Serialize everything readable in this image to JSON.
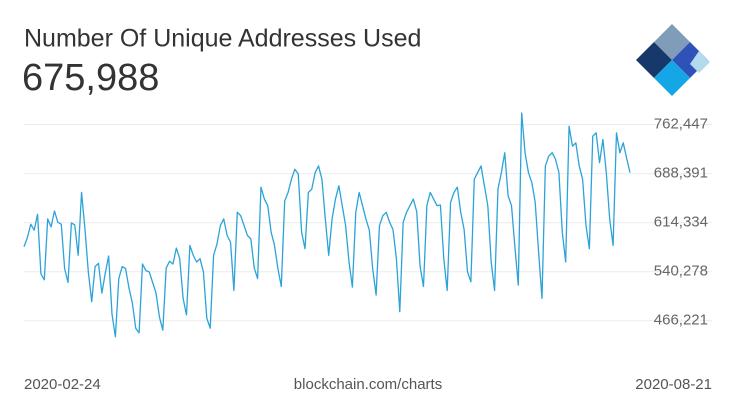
{
  "chart_data": {
    "type": "line",
    "title": "Number Of Unique Addresses Used",
    "headline": "675,988",
    "source": "blockchain.com/charts",
    "categories": [
      "2020-02-24",
      null,
      null,
      null,
      null,
      null,
      null,
      null,
      null,
      null,
      null,
      null,
      null,
      null,
      null,
      null,
      null,
      null,
      null,
      null,
      null,
      null,
      null,
      null,
      null,
      null,
      null,
      null,
      null,
      null,
      null,
      null,
      null,
      null,
      null,
      null,
      null,
      null,
      null,
      null,
      null,
      null,
      null,
      null,
      null,
      null,
      null,
      null,
      null,
      null,
      null,
      null,
      null,
      null,
      null,
      null,
      null,
      null,
      null,
      null,
      null,
      null,
      null,
      null,
      null,
      null,
      null,
      null,
      null,
      null,
      null,
      null,
      null,
      null,
      null,
      null,
      null,
      null,
      null,
      null,
      null,
      null,
      null,
      null,
      null,
      null,
      null,
      null,
      null,
      null,
      null,
      null,
      null,
      null,
      null,
      null,
      null,
      null,
      null,
      null,
      null,
      null,
      null,
      null,
      null,
      null,
      null,
      null,
      null,
      null,
      null,
      null,
      null,
      null,
      null,
      null,
      null,
      null,
      null,
      null,
      null,
      null,
      null,
      null,
      null,
      null,
      null,
      null,
      null,
      null,
      null,
      null,
      null,
      null,
      null,
      null,
      null,
      null,
      null,
      null,
      null,
      null,
      null,
      null,
      null,
      null,
      null,
      null,
      null,
      null,
      null,
      null,
      null,
      null,
      null,
      null,
      null,
      null,
      null,
      null,
      null,
      null,
      null,
      null,
      null,
      null,
      null,
      null,
      null,
      null,
      null,
      null,
      null,
      null,
      null,
      null,
      null,
      null,
      null,
      "2020-08-21"
    ],
    "values": [
      578000,
      592000,
      612000,
      603000,
      627000,
      537000,
      528000,
      620000,
      608000,
      632000,
      615000,
      612000,
      545000,
      524000,
      614000,
      611000,
      565000,
      660000,
      605000,
      540000,
      495000,
      548000,
      553000,
      508000,
      538000,
      564000,
      476000,
      442000,
      530000,
      548000,
      545000,
      516000,
      493000,
      455000,
      448000,
      552000,
      542000,
      540000,
      524000,
      508000,
      472000,
      452000,
      546000,
      556000,
      552000,
      576000,
      560000,
      500000,
      475000,
      580000,
      565000,
      555000,
      560000,
      540000,
      470000,
      455000,
      565000,
      582000,
      610000,
      620000,
      595000,
      585000,
      512000,
      630000,
      625000,
      610000,
      595000,
      590000,
      546000,
      530000,
      668000,
      650000,
      640000,
      600000,
      580000,
      545000,
      518000,
      647000,
      660000,
      680000,
      695000,
      688000,
      600000,
      575000,
      660000,
      665000,
      690000,
      700000,
      680000,
      620000,
      565000,
      620000,
      650000,
      670000,
      640000,
      610000,
      555000,
      517000,
      630000,
      660000,
      640000,
      620000,
      603000,
      545000,
      505000,
      610000,
      625000,
      630000,
      615000,
      604000,
      560000,
      480000,
      615000,
      630000,
      640000,
      650000,
      631000,
      548000,
      518000,
      640000,
      660000,
      650000,
      640000,
      641000,
      560000,
      512000,
      645000,
      660000,
      668000,
      630000,
      604000,
      540000,
      525000,
      680000,
      690000,
      700000,
      670000,
      640000,
      555000,
      512000,
      665000,
      690000,
      720000,
      655000,
      640000,
      578000,
      520000,
      780000,
      720000,
      690000,
      675000,
      645000,
      570000,
      500000,
      700000,
      715000,
      720000,
      710000,
      690000,
      600000,
      555000,
      760000,
      730000,
      735000,
      700000,
      680000,
      610000,
      575000,
      745000,
      750000,
      705000,
      740000,
      690000,
      620000,
      580000,
      750000,
      720000,
      735000,
      712000,
      690000
    ],
    "color": "#2ba3d9",
    "ylim": [
      410000,
      780000
    ],
    "yticks": [
      {
        "value": 466221,
        "label": "466,221"
      },
      {
        "value": 540278,
        "label": "540,278"
      },
      {
        "value": 614334,
        "label": "614,334"
      },
      {
        "value": 688391,
        "label": "688,391"
      },
      {
        "value": 762447,
        "label": "762,447"
      }
    ],
    "grid": true
  }
}
